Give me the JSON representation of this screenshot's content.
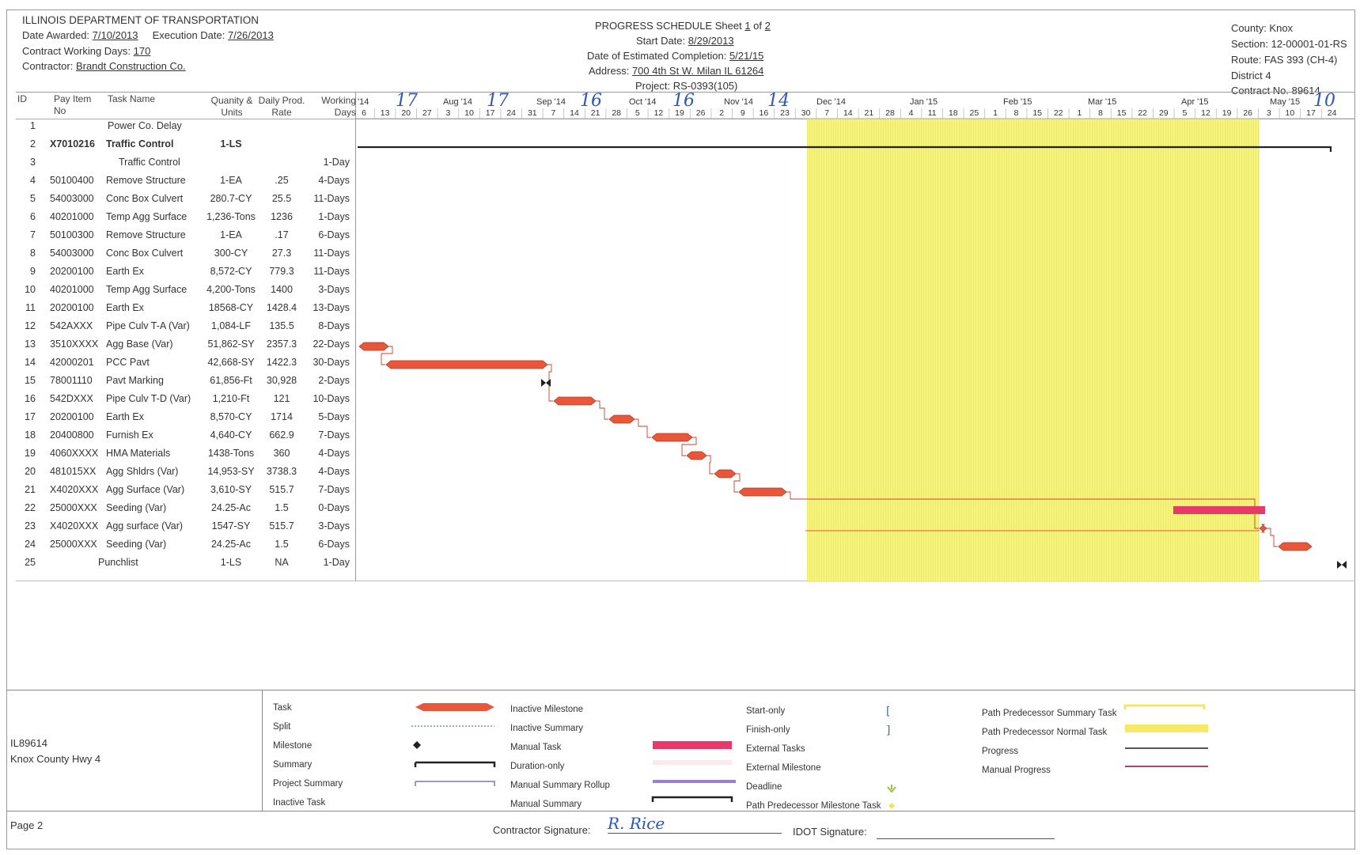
{
  "header": {
    "department": "ILLINOIS DEPARTMENT OF TRANSPORTATION",
    "date_awarded_label": "Date Awarded:",
    "date_awarded": "7/10/2013",
    "execution_date_label": "Execution Date:",
    "execution_date": "7/26/2013",
    "working_days_label": "Contract Working Days:",
    "working_days": "170",
    "contractor_label": "Contractor:",
    "contractor": "Brandt Construction Co.",
    "sheet_label": "PROGRESS SCHEDULE Sheet",
    "sheet_no": "1",
    "sheet_of": "of",
    "sheet_total": "2",
    "start_date_label": "Start Date:",
    "start_date": "8/29/2013",
    "completion_label": "Date of Estimated Completion:",
    "completion_date": "5/21/15",
    "address_label": "Address:",
    "address": "700 4th St W. Milan IL 61264",
    "project_label": "Project:",
    "project": "RS-0393(105)",
    "county": "County:  Knox",
    "section": "Section: 12-00001-01-RS",
    "route": "Route:  FAS 393 (CH-4)",
    "district": "District 4",
    "contract_no": "Contract No.  89614"
  },
  "columns": {
    "id": "ID",
    "pay_item_1": "Pay Item",
    "pay_item_2": "No",
    "task_name": "Task Name",
    "quantity_1": "Quanity &",
    "quantity_2": "Units",
    "daily_prod_1": "Daily Prod.",
    "daily_prod_2": "Rate",
    "working_1": "Working",
    "working_2": "Days"
  },
  "tasks": [
    {
      "id": "1",
      "pay": "",
      "name": "Power Co. Delay",
      "qty": "",
      "rate": "",
      "days": ""
    },
    {
      "id": "2",
      "pay": "X7010216",
      "name": "Traffic Control",
      "qty": "1-LS",
      "rate": "",
      "days": ""
    },
    {
      "id": "3",
      "pay": "",
      "name": "Traffic Control",
      "qty": "",
      "rate": "",
      "days": "1-Day"
    },
    {
      "id": "4",
      "pay": "50100400",
      "name": "Remove Structure",
      "qty": "1-EA",
      "rate": ".25",
      "days": "4-Days"
    },
    {
      "id": "5",
      "pay": "54003000",
      "name": "Conc Box Culvert",
      "qty": "280.7-CY",
      "rate": "25.5",
      "days": "11-Days"
    },
    {
      "id": "6",
      "pay": "40201000",
      "name": "Temp Agg Surface",
      "qty": "1,236-Tons",
      "rate": "1236",
      "days": "1-Days"
    },
    {
      "id": "7",
      "pay": "50100300",
      "name": "Remove Structure",
      "qty": "1-EA",
      "rate": ".17",
      "days": "6-Days"
    },
    {
      "id": "8",
      "pay": "54003000",
      "name": "Conc Box Culvert",
      "qty": "300-CY",
      "rate": "27.3",
      "days": "11-Days"
    },
    {
      "id": "9",
      "pay": "20200100",
      "name": "Earth Ex",
      "qty": "8,572-CY",
      "rate": "779.3",
      "days": "11-Days"
    },
    {
      "id": "10",
      "pay": "40201000",
      "name": "Temp Agg Surface",
      "qty": "4,200-Tons",
      "rate": "1400",
      "days": "3-Days"
    },
    {
      "id": "11",
      "pay": "20200100",
      "name": "Earth Ex",
      "qty": "18568-CY",
      "rate": "1428.4",
      "days": "13-Days"
    },
    {
      "id": "12",
      "pay": "542AXXX",
      "name": "Pipe Culv T-A (Var)",
      "qty": "1,084-LF",
      "rate": "135.5",
      "days": "8-Days"
    },
    {
      "id": "13",
      "pay": "3510XXXX",
      "name": "Agg Base (Var)",
      "qty": "51,862-SY",
      "rate": "2357.3",
      "days": "22-Days"
    },
    {
      "id": "14",
      "pay": "42000201",
      "name": "PCC Pavt",
      "qty": "42,668-SY",
      "rate": "1422.3",
      "days": "30-Days"
    },
    {
      "id": "15",
      "pay": "78001110",
      "name": "Pavt Marking",
      "qty": "61,856-Ft",
      "rate": "30,928",
      "days": "2-Days"
    },
    {
      "id": "16",
      "pay": "542DXXX",
      "name": "Pipe Culv T-D (Var)",
      "qty": "1,210-Ft",
      "rate": "121",
      "days": "10-Days"
    },
    {
      "id": "17",
      "pay": "20200100",
      "name": "Earth Ex",
      "qty": "8,570-CY",
      "rate": "1714",
      "days": "5-Days"
    },
    {
      "id": "18",
      "pay": "20400800",
      "name": "Furnish Ex",
      "qty": "4,640-CY",
      "rate": "662.9",
      "days": "7-Days"
    },
    {
      "id": "19",
      "pay": "4060XXXX",
      "name": "HMA Materials",
      "qty": "1438-Tons",
      "rate": "360",
      "days": "4-Days"
    },
    {
      "id": "20",
      "pay": "481015XX",
      "name": "Agg Shldrs (Var)",
      "qty": "14,953-SY",
      "rate": "3738.3",
      "days": "4-Days"
    },
    {
      "id": "21",
      "pay": "X4020XXX",
      "name": "Agg Surface (Var)",
      "qty": "3,610-SY",
      "rate": "515.7",
      "days": "7-Days"
    },
    {
      "id": "22",
      "pay": "25000XXX",
      "name": "Seeding (Var)",
      "qty": "24.25-Ac",
      "rate": "1.5",
      "days": "0-Days"
    },
    {
      "id": "23",
      "pay": "X4020XXX",
      "name": "Agg surface (Var)",
      "qty": "1547-SY",
      "rate": "515.7",
      "days": "3-Days"
    },
    {
      "id": "24",
      "pay": "25000XXX",
      "name": "Seeding (Var)",
      "qty": "24.25-Ac",
      "rate": "1.5",
      "days": "6-Days"
    },
    {
      "id": "25",
      "pay": "",
      "name": "Punchlist",
      "qty": "1-LS",
      "rate": "NA",
      "days": "1-Day"
    }
  ],
  "timeline": {
    "months": [
      "'14",
      "Aug '14",
      "Sep '14",
      "Oct '14",
      "Nov '14",
      "Dec '14",
      "Jan '15",
      "Feb '15",
      "Mar '15",
      "Apr '15",
      "May '15"
    ],
    "handwritten": [
      "17",
      "17",
      "16",
      "16",
      "14",
      "10"
    ],
    "days": [
      "6",
      "13",
      "20",
      "27",
      "3",
      "10",
      "17",
      "24",
      "31",
      "7",
      "14",
      "21",
      "28",
      "5",
      "12",
      "19",
      "26",
      "2",
      "9",
      "16",
      "23",
      "30",
      "7",
      "14",
      "21",
      "28",
      "4",
      "11",
      "18",
      "25",
      "1",
      "8",
      "15",
      "22",
      "1",
      "8",
      "15",
      "22",
      "29",
      "5",
      "12",
      "19",
      "26",
      "3",
      "10",
      "17",
      "24"
    ]
  },
  "legend": {
    "project_id": "IL89614",
    "project_name": "Knox County Hwy 4",
    "items": [
      "Task",
      "Split",
      "Milestone",
      "Summary",
      "Project Summary",
      "Inactive Task",
      "Inactive Milestone",
      "Inactive Summary",
      "Manual Task",
      "Duration-only",
      "Manual Summary Rollup",
      "Manual Summary",
      "Start-only",
      "Finish-only",
      "External Tasks",
      "External Milestone",
      "Deadline",
      "Path Predecessor Milestone Task",
      "Path Predecessor Summary Task",
      "Path Predecessor Normal Task",
      "Progress",
      "Manual Progress"
    ],
    "colors": {
      "task": "#e8573a",
      "manual_task": "#e83a6a",
      "highlight": "#f6f37a",
      "summary": "#222222",
      "deadline": "#9ac23c",
      "start_finish": "#2a6ed8"
    }
  },
  "footer": {
    "page": "Page 2",
    "contractor_sig_label": "Contractor Signature:",
    "contractor_sig": "R. Rice",
    "idot_sig_label": "IDOT Signature:"
  }
}
